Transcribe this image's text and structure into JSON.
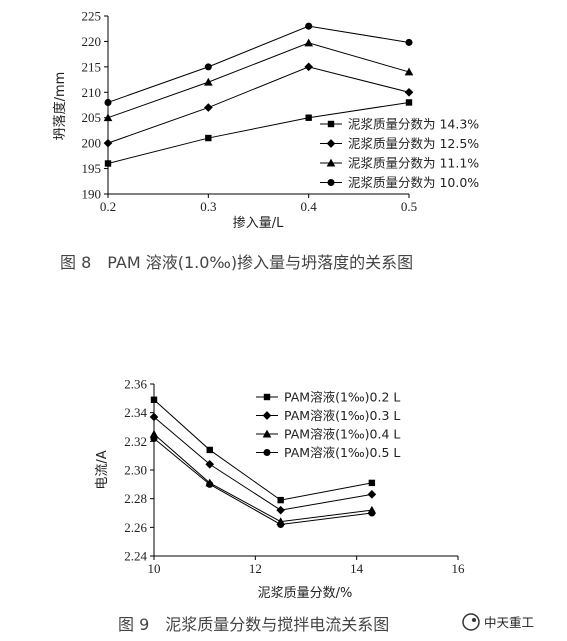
{
  "chart_data": [
    {
      "type": "line",
      "caption": "图 8　PAM 溶液(1.0‰)掺入量与坍落度的关系图",
      "xlabel": "掺入量/L",
      "ylabel": "坍落度/mm",
      "xlim": [
        0.2,
        0.5
      ],
      "ylim": [
        190,
        225
      ],
      "xticks": [
        "0.2",
        "0.3",
        "0.4",
        "0.5"
      ],
      "yticks": [
        "190",
        "195",
        "200",
        "205",
        "210",
        "215",
        "220",
        "225"
      ],
      "legend_position": "bottom-right",
      "grid": false,
      "x": [
        0.2,
        0.3,
        0.4,
        0.5
      ],
      "series": [
        {
          "name": "泥浆质量分数为 14.3%",
          "marker": "square",
          "values": [
            196,
            201,
            205,
            208
          ]
        },
        {
          "name": "泥浆质量分数为 12.5%",
          "marker": "diamond",
          "values": [
            200,
            207,
            215,
            210
          ]
        },
        {
          "name": "泥浆质量分数为 11.1%",
          "marker": "triangle",
          "values": [
            205,
            212,
            219.7,
            214
          ]
        },
        {
          "name": "泥浆质量分数为 10.0%",
          "marker": "circle",
          "values": [
            208,
            215,
            223,
            219.8
          ]
        }
      ]
    },
    {
      "type": "line",
      "caption": "图 9　泥浆质量分数与搅拌电流关系图",
      "xlabel": "泥浆质量分数/%",
      "ylabel": "电流/A",
      "xlim": [
        10,
        16
      ],
      "ylim": [
        2.24,
        2.36
      ],
      "xticks": [
        "10",
        "12",
        "14",
        "16"
      ],
      "yticks": [
        "2.24",
        "2.26",
        "2.28",
        "2.30",
        "2.32",
        "2.34",
        "2.36"
      ],
      "legend_position": "top-right",
      "grid": false,
      "x": [
        10.0,
        11.1,
        12.5,
        14.3
      ],
      "series": [
        {
          "name": "PAM溶液(1‰)0.2 L",
          "marker": "square",
          "values": [
            2.349,
            2.314,
            2.279,
            2.291
          ]
        },
        {
          "name": "PAM溶液(1‰)0.3 L",
          "marker": "diamond",
          "values": [
            2.337,
            2.304,
            2.272,
            2.283
          ]
        },
        {
          "name": "PAM溶液(1‰)0.4 L",
          "marker": "triangle",
          "values": [
            2.325,
            2.291,
            2.264,
            2.272
          ]
        },
        {
          "name": "PAM溶液(1‰)0.5 L",
          "marker": "circle",
          "values": [
            2.322,
            2.29,
            2.262,
            2.27
          ]
        }
      ]
    }
  ],
  "watermark": {
    "text": "中天重工"
  }
}
